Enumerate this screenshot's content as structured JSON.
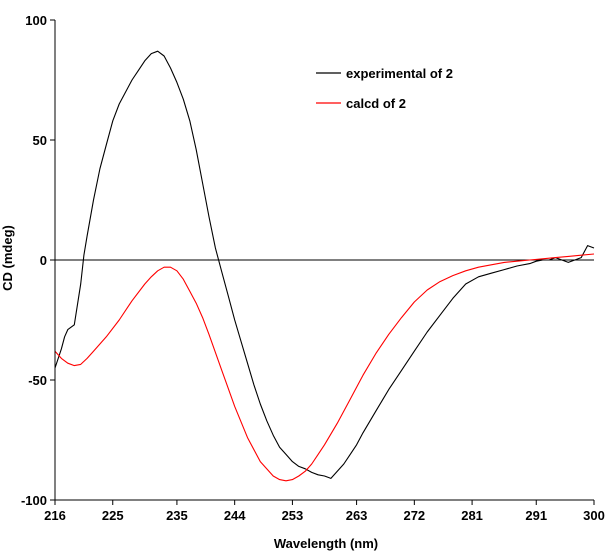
{
  "chart_data": {
    "type": "line",
    "xlabel": "Wavelength (nm)",
    "ylabel": "CD (mdeg)",
    "xlim": [
      216,
      300
    ],
    "ylim": [
      -100,
      100
    ],
    "x_ticks": [
      216,
      225,
      235,
      244,
      253,
      263,
      272,
      281,
      291,
      300
    ],
    "x_tick_labels": [
      "216",
      "225",
      "235",
      "244",
      "253",
      "263",
      "272",
      "281",
      "291",
      "300"
    ],
    "y_ticks": [
      -100,
      -50,
      0,
      50,
      100
    ],
    "y_tick_labels": [
      "-100",
      "-50",
      "0",
      "50",
      "100"
    ],
    "zero_line": true,
    "grid": false,
    "legend_position": "top-right",
    "series": [
      {
        "name": "experimental of 2",
        "color": "#000000",
        "x": [
          216,
          217,
          217.5,
          218,
          219,
          220,
          220.5,
          221,
          222,
          223,
          224,
          225,
          226,
          227,
          228,
          229,
          230,
          231,
          232,
          233,
          234,
          235,
          236,
          237,
          238,
          239,
          240,
          241,
          242,
          243,
          244,
          245,
          246,
          247,
          248,
          249,
          250,
          251,
          252,
          253,
          254,
          255,
          256,
          257,
          258,
          259,
          260,
          261,
          262,
          263,
          264,
          266,
          268,
          270,
          272,
          274,
          276,
          278,
          280,
          282,
          284,
          286,
          288,
          290,
          291,
          292,
          293,
          294,
          295,
          296,
          297,
          298,
          299,
          300
        ],
        "y": [
          -45,
          -37,
          -32,
          -29,
          -27,
          -10,
          2,
          10,
          25,
          38,
          48,
          58,
          65,
          70,
          75,
          79,
          83,
          86,
          87,
          85,
          80,
          74,
          67,
          58,
          46,
          32,
          18,
          5,
          -5,
          -15,
          -25,
          -34,
          -43,
          -52,
          -60,
          -67,
          -73,
          -78,
          -81,
          -84,
          -86,
          -87,
          -88.5,
          -89.5,
          -90,
          -91,
          -88,
          -85,
          -81,
          -77,
          -72,
          -63,
          -54,
          -46,
          -38,
          -30,
          -23,
          -16,
          -10,
          -7,
          -5.5,
          -4,
          -2.5,
          -1.5,
          -0.5,
          0,
          0,
          1,
          0,
          -1,
          0,
          1,
          6,
          5
        ]
      },
      {
        "name": "calcd of 2",
        "color": "#ff0000",
        "x": [
          216,
          217,
          218,
          219,
          220,
          221,
          222,
          224,
          226,
          228,
          230,
          231,
          232,
          233,
          234,
          235,
          236,
          237,
          238,
          239,
          240,
          242,
          244,
          246,
          248,
          250,
          251,
          252,
          253,
          254,
          255,
          256,
          257,
          258,
          260,
          262,
          264,
          266,
          268,
          270,
          272,
          274,
          276,
          278,
          280,
          282,
          284,
          286,
          288,
          290,
          292,
          294,
          296,
          298,
          300
        ],
        "y": [
          -38,
          -41,
          -43,
          -44,
          -43.5,
          -41,
          -38,
          -32,
          -25,
          -17,
          -10,
          -7,
          -4.5,
          -3,
          -3,
          -4.5,
          -8,
          -13,
          -18,
          -24,
          -31,
          -46,
          -61,
          -74,
          -84,
          -90,
          -91.5,
          -92,
          -91.5,
          -90,
          -88,
          -85,
          -81,
          -77,
          -68,
          -58,
          -48,
          -39,
          -31,
          -24,
          -17.5,
          -12.5,
          -9,
          -6.5,
          -4.5,
          -3,
          -2,
          -1,
          -0.5,
          0,
          0.5,
          1,
          1.5,
          2,
          2.5
        ]
      }
    ],
    "annotations": []
  }
}
